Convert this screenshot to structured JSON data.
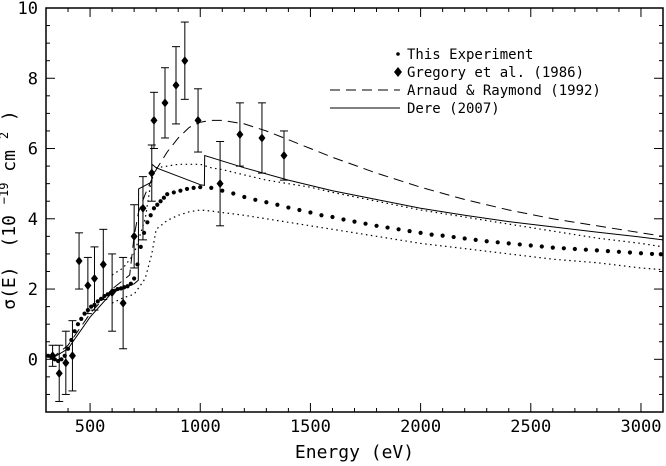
{
  "chart_data": {
    "type": "scatter",
    "title": "",
    "xlabel": "Energy (eV)",
    "ylabel_main": "σ(E)",
    "ylabel_units_prefix": "(10",
    "ylabel_units_exp": "−19",
    "ylabel_units_mid": " cm",
    "ylabel_units_exp2": "2",
    "ylabel_units_suffix": ")",
    "xlim": [
      300,
      3100
    ],
    "ylim": [
      -1.5,
      10
    ],
    "x_ticks": [
      500,
      1000,
      1500,
      2000,
      2500,
      3000
    ],
    "x_tick_labels": [
      "500",
      "1000",
      "1500",
      "2000",
      "2500",
      "3000"
    ],
    "y_ticks": [
      0,
      2,
      4,
      6,
      8,
      10
    ],
    "y_tick_labels": [
      "0",
      "2",
      "4",
      "6",
      "8",
      "10"
    ],
    "x_minor_step": 100,
    "y_minor_step": 0.5,
    "legend_position": "top-right",
    "series": [
      {
        "name": "This Experiment",
        "style": "dots",
        "x": [
          310,
          325,
          340,
          355,
          370,
          385,
          400,
          415,
          430,
          445,
          460,
          475,
          490,
          505,
          520,
          535,
          550,
          565,
          580,
          595,
          610,
          625,
          640,
          655,
          670,
          685,
          700,
          715,
          730,
          745,
          760,
          775,
          790,
          805,
          820,
          835,
          850,
          880,
          910,
          940,
          970,
          1000,
          1050,
          1100,
          1150,
          1200,
          1250,
          1300,
          1350,
          1400,
          1450,
          1500,
          1550,
          1600,
          1650,
          1700,
          1750,
          1800,
          1850,
          1900,
          1950,
          2000,
          2050,
          2100,
          2150,
          2200,
          2250,
          2300,
          2350,
          2400,
          2450,
          2500,
          2550,
          2600,
          2650,
          2700,
          2750,
          2800,
          2850,
          2900,
          2950,
          3000,
          3050,
          3090
        ],
        "y": [
          0.1,
          0.05,
          0.0,
          -0.05,
          0.0,
          0.1,
          0.3,
          0.55,
          0.8,
          1.0,
          1.15,
          1.3,
          1.4,
          1.5,
          1.55,
          1.65,
          1.72,
          1.8,
          1.85,
          1.9,
          1.95,
          2.0,
          2.02,
          2.05,
          2.08,
          2.15,
          2.3,
          2.7,
          3.2,
          3.6,
          3.9,
          4.1,
          4.3,
          4.4,
          4.5,
          4.6,
          4.7,
          4.75,
          4.8,
          4.85,
          4.88,
          4.9,
          4.88,
          4.8,
          4.72,
          4.62,
          4.54,
          4.47,
          4.4,
          4.32,
          4.25,
          4.18,
          4.1,
          4.05,
          3.98,
          3.92,
          3.86,
          3.8,
          3.75,
          3.7,
          3.65,
          3.6,
          3.55,
          3.52,
          3.48,
          3.44,
          3.4,
          3.36,
          3.33,
          3.3,
          3.27,
          3.24,
          3.21,
          3.18,
          3.16,
          3.14,
          3.12,
          3.1,
          3.08,
          3.06,
          3.04,
          3.02,
          3.0,
          2.99
        ]
      },
      {
        "name": "Gregory et al. (1986)",
        "style": "diamonds-with-errorbars",
        "x": [
          330,
          360,
          390,
          420,
          450,
          490,
          520,
          560,
          600,
          650,
          700,
          740,
          780,
          790,
          840,
          890,
          930,
          990,
          1090,
          1180,
          1280,
          1380
        ],
        "y": [
          0.1,
          -0.4,
          -0.1,
          0.1,
          2.8,
          2.1,
          2.3,
          2.7,
          1.9,
          1.6,
          3.5,
          4.3,
          5.3,
          6.8,
          7.3,
          7.8,
          8.5,
          6.8,
          5.0,
          6.4,
          6.3,
          5.8
        ],
        "err": [
          0.3,
          0.8,
          0.9,
          1.0,
          0.8,
          0.8,
          0.9,
          1.0,
          1.1,
          1.3,
          0.9,
          0.9,
          0.8,
          0.8,
          1.0,
          1.1,
          1.1,
          0.9,
          1.2,
          0.9,
          1.0,
          0.7
        ]
      },
      {
        "name": "Arnaud & Raymond (1992)",
        "style": "dashed",
        "x": [
          320,
          400,
          500,
          600,
          680,
          700,
          720,
          750,
          800,
          850,
          900,
          950,
          1000,
          1050,
          1100,
          1200,
          1300,
          1400,
          1500,
          1600,
          1800,
          2000,
          2200,
          2400,
          2600,
          2800,
          3000,
          3100
        ],
        "y": [
          0.0,
          0.4,
          1.3,
          2.0,
          2.4,
          3.5,
          4.2,
          4.7,
          5.4,
          5.9,
          6.3,
          6.6,
          6.75,
          6.8,
          6.8,
          6.7,
          6.5,
          6.25,
          6.0,
          5.75,
          5.3,
          4.9,
          4.55,
          4.25,
          4.0,
          3.8,
          3.6,
          3.5
        ]
      },
      {
        "name": "Dere (2007)",
        "style": "solid",
        "x": [
          320,
          400,
          500,
          600,
          700,
          719,
          720,
          780,
          781,
          800,
          1000,
          1019,
          1020,
          1200,
          1400,
          1600,
          1800,
          2000,
          2200,
          2400,
          2600,
          2800,
          3000,
          3100
        ],
        "y": [
          0.0,
          0.3,
          1.2,
          1.9,
          2.15,
          2.25,
          4.85,
          5.05,
          5.55,
          5.45,
          4.97,
          4.95,
          5.8,
          5.45,
          5.1,
          4.8,
          4.55,
          4.3,
          4.1,
          3.92,
          3.77,
          3.62,
          3.48,
          3.4
        ]
      },
      {
        "name": "upper dotted band",
        "style": "dotted",
        "x": [
          600,
          650,
          700,
          750,
          780,
          800,
          850,
          900,
          950,
          1000,
          1050,
          1100,
          1200,
          1300,
          1400,
          1500,
          1600,
          1800,
          2000,
          2200,
          2400,
          2600,
          2800,
          3000,
          3100
        ],
        "y": [
          2.4,
          2.6,
          3.0,
          4.0,
          5.2,
          5.45,
          5.5,
          5.55,
          5.55,
          5.55,
          5.45,
          5.4,
          5.25,
          5.1,
          5.0,
          4.9,
          4.75,
          4.5,
          4.25,
          4.05,
          3.85,
          3.65,
          3.45,
          3.3,
          3.2
        ]
      },
      {
        "name": "lower dotted band",
        "style": "dotted",
        "x": [
          600,
          650,
          700,
          750,
          780,
          800,
          850,
          900,
          950,
          1000,
          1050,
          1100,
          1200,
          1300,
          1400,
          1500,
          1600,
          1800,
          2000,
          2200,
          2400,
          2600,
          2800,
          3000,
          3100
        ],
        "y": [
          1.6,
          1.75,
          1.85,
          2.3,
          3.0,
          3.7,
          3.95,
          4.1,
          4.2,
          4.25,
          4.22,
          4.18,
          4.1,
          4.0,
          3.9,
          3.8,
          3.7,
          3.5,
          3.3,
          3.15,
          3.0,
          2.85,
          2.75,
          2.6,
          2.55
        ]
      }
    ],
    "legend": [
      {
        "label": "This Experiment",
        "marker": "dot"
      },
      {
        "label": "Gregory et al. (1986)",
        "marker": "diamond"
      },
      {
        "label": "Arnaud & Raymond (1992)",
        "marker": "dashed"
      },
      {
        "label": "Dere (2007)",
        "marker": "solid"
      }
    ]
  }
}
